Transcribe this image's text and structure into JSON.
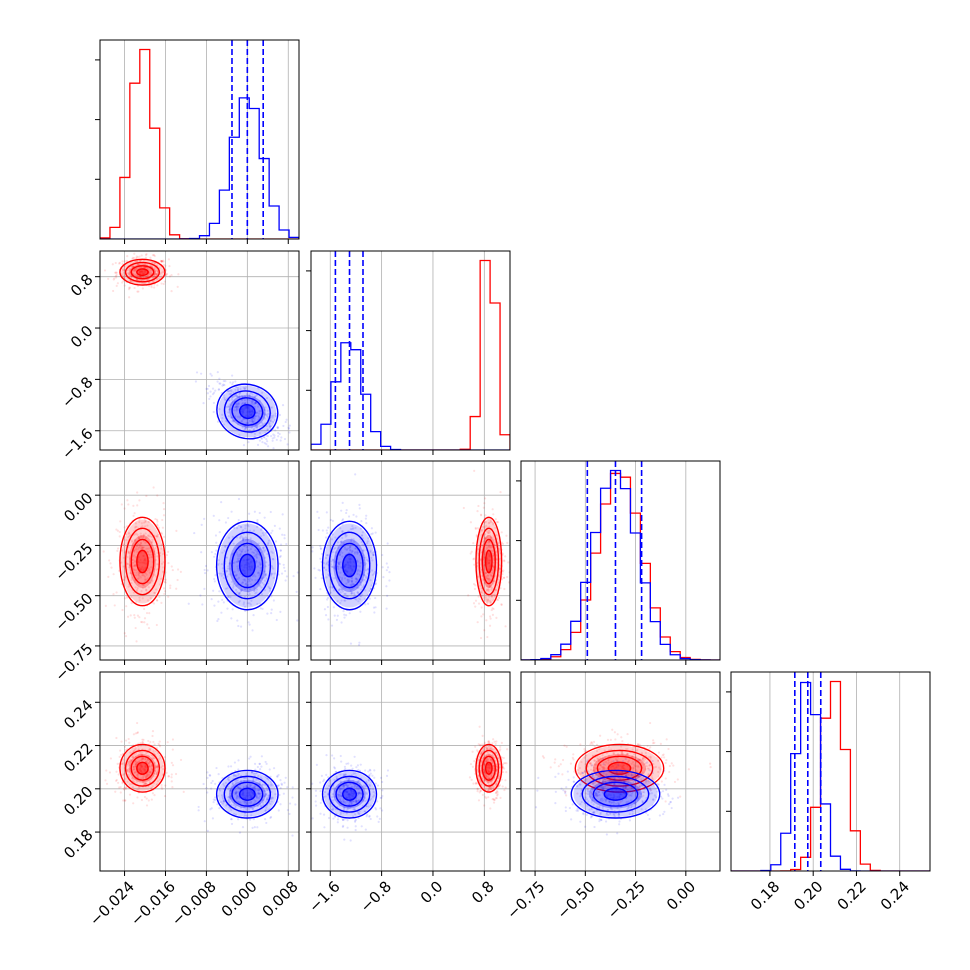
{
  "chart_data": {
    "type": "corner",
    "colors": {
      "red": "#ff0000",
      "blue": "#0000ff"
    },
    "grid": true,
    "parameters": [
      {
        "ticks": [
          -0.024,
          -0.016,
          -0.008,
          0.0,
          0.008
        ],
        "tick_labels": [
          "−0.024",
          "−0.016",
          "−0.008",
          "0.000",
          "0.008"
        ],
        "range": [
          -0.0288,
          0.0101
        ]
      },
      {
        "ticks": [
          -1.6,
          -0.8,
          0.0,
          0.8
        ],
        "tick_labels": [
          "−1.6",
          "−0.8",
          "0.0",
          "0.8"
        ],
        "range": [
          -1.9,
          1.2
        ]
      },
      {
        "ticks": [
          -0.75,
          -0.5,
          -0.25,
          0.0
        ],
        "tick_labels": [
          "−0.75",
          "−0.50",
          "−0.25",
          "0.00"
        ],
        "range": [
          -0.82,
          0.17
        ]
      },
      {
        "ticks": [
          0.18,
          0.2,
          0.22,
          0.24
        ],
        "tick_labels": [
          "0.18",
          "0.20",
          "0.22",
          "0.24"
        ],
        "range": [
          0.162,
          0.254
        ]
      }
    ],
    "series": [
      {
        "color": "red",
        "mean": [
          -0.0205,
          0.87,
          -0.33,
          0.2095
        ],
        "std": [
          0.0022,
          0.1,
          0.11,
          0.0055
        ]
      },
      {
        "color": "blue",
        "mean": [
          0.0,
          -1.3,
          -0.35,
          0.1975
        ],
        "std": [
          0.003,
          0.21,
          0.11,
          0.0055
        ],
        "rho01": -0.6,
        "rho23_offset": -0.0085
      }
    ],
    "quantile_lines": {
      "color": "blue",
      "values": [
        [
          -0.003,
          0.0,
          0.0031
        ],
        [
          -1.52,
          -1.3,
          -1.09
        ],
        [
          -0.49,
          -0.35,
          -0.22
        ],
        [
          0.1915,
          0.1975,
          0.2035
        ]
      ]
    }
  }
}
